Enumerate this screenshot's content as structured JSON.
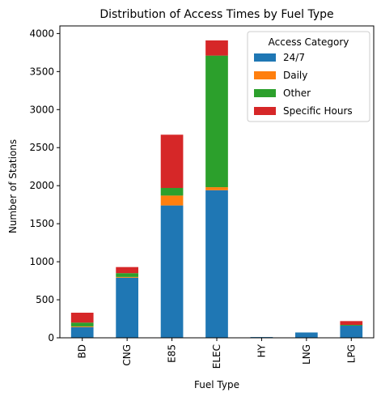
{
  "chart_data": {
    "type": "bar",
    "stacked": true,
    "title": "Distribution of Access Times by Fuel Type",
    "xlabel": "Fuel Type",
    "ylabel": "Number of Stations",
    "ylim": [
      0,
      4100
    ],
    "yticks": [
      0,
      500,
      1000,
      1500,
      2000,
      2500,
      3000,
      3500,
      4000
    ],
    "categories": [
      "BD",
      "CNG",
      "E85",
      "ELEC",
      "HY",
      "LNG",
      "LPG"
    ],
    "series": [
      {
        "name": "24/7",
        "color": "#1f77b4",
        "values": [
          140,
          790,
          1740,
          1940,
          10,
          70,
          160
        ]
      },
      {
        "name": "Daily",
        "color": "#ff7f0e",
        "values": [
          10,
          10,
          130,
          40,
          0,
          0,
          0
        ]
      },
      {
        "name": "Other",
        "color": "#2ca02c",
        "values": [
          50,
          50,
          100,
          1730,
          0,
          0,
          10
        ]
      },
      {
        "name": "Specific Hours",
        "color": "#d62728",
        "values": [
          130,
          80,
          700,
          200,
          0,
          0,
          50
        ]
      }
    ],
    "legend": {
      "title": "Access Category",
      "placement": "top-right"
    },
    "grid": false
  }
}
